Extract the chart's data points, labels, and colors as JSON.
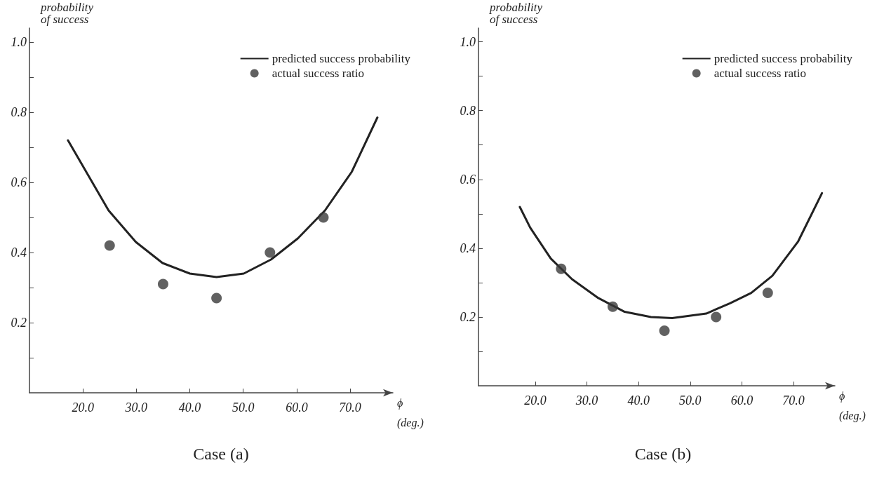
{
  "chart_data": [
    {
      "type": "line",
      "title": "Case (a)",
      "xlabel": "ϕ\n(deg.)",
      "ylabel": "probability\nof success",
      "legend": "top right",
      "grid": false,
      "xlim": [
        10,
        78
      ],
      "xticks": [
        {
          "value": 20,
          "label": "20.0"
        },
        {
          "value": 30,
          "label": "30.0"
        },
        {
          "value": 40,
          "label": "40.0"
        },
        {
          "value": 50,
          "label": "50.0"
        },
        {
          "value": 60,
          "label": "60.0"
        },
        {
          "value": 70,
          "label": "70.0"
        }
      ],
      "ylim": [
        0,
        1.04
      ],
      "yticks": [
        {
          "value": 0.1,
          "label": null
        },
        {
          "value": 0.2,
          "label": "0.2"
        },
        {
          "value": 0.3,
          "label": null
        },
        {
          "value": 0.4,
          "label": "0.4"
        },
        {
          "value": 0.5,
          "label": null
        },
        {
          "value": 0.6,
          "label": "0.6"
        },
        {
          "value": 0.7,
          "label": null
        },
        {
          "value": 0.8,
          "label": "0.8"
        },
        {
          "value": 0.9,
          "label": null
        },
        {
          "value": 1.0,
          "label": "1.0"
        }
      ],
      "series": [
        {
          "name": "predicted success probability",
          "marker": "none",
          "line_style": "solid",
          "color": "#222222",
          "x": [
            17.2,
            24.8,
            29.9,
            34.9,
            40,
            45,
            50.1,
            55.2,
            60.2,
            65.3,
            70.3,
            75.1
          ],
          "values": [
            0.72,
            0.52,
            0.43,
            0.37,
            0.34,
            0.33,
            0.34,
            0.38,
            0.44,
            0.52,
            0.63,
            0.785
          ]
        },
        {
          "name": "actual success ratio",
          "type": "scatter",
          "marker": "circle",
          "color": "#3a3a3a",
          "x": [
            25,
            35,
            45,
            55,
            65
          ],
          "values": [
            0.42,
            0.31,
            0.27,
            0.4,
            0.5
          ]
        }
      ]
    },
    {
      "type": "line",
      "title": "Case (b)",
      "xlabel": "ϕ\n(deg.)",
      "ylabel": "probability\nof success",
      "legend": "top right",
      "grid": false,
      "xlim": [
        9,
        78
      ],
      "xticks": [
        {
          "value": 20,
          "label": "20.0"
        },
        {
          "value": 30,
          "label": "30.0"
        },
        {
          "value": 40,
          "label": "40.0"
        },
        {
          "value": 50,
          "label": "50.0"
        },
        {
          "value": 60,
          "label": "60.0"
        },
        {
          "value": 70,
          "label": "70.0"
        }
      ],
      "ylim": [
        0,
        1.04
      ],
      "yticks": [
        {
          "value": 0.1,
          "label": null
        },
        {
          "value": 0.2,
          "label": "0.2"
        },
        {
          "value": 0.3,
          "label": null
        },
        {
          "value": 0.4,
          "label": "0.4"
        },
        {
          "value": 0.5,
          "label": null
        },
        {
          "value": 0.6,
          "label": "0.6"
        },
        {
          "value": 0.7,
          "label": null
        },
        {
          "value": 0.8,
          "label": "0.8"
        },
        {
          "value": 0.9,
          "label": null
        },
        {
          "value": 1.0,
          "label": "1.0"
        }
      ],
      "series": [
        {
          "name": "predicted success probability",
          "marker": "none",
          "line_style": "solid",
          "color": "#222222",
          "x": [
            17.0,
            19.0,
            23.0,
            27.1,
            32.2,
            37.3,
            42.4,
            46.5,
            53.1,
            57.7,
            61.8,
            65.9,
            70.9,
            75.5
          ],
          "values": [
            0.52,
            0.46,
            0.37,
            0.31,
            0.255,
            0.215,
            0.2,
            0.197,
            0.21,
            0.24,
            0.27,
            0.32,
            0.42,
            0.56
          ]
        },
        {
          "name": "actual success ratio",
          "type": "scatter",
          "marker": "circle",
          "color": "#3a3a3a",
          "x": [
            25,
            35,
            45,
            55,
            65
          ],
          "values": [
            0.34,
            0.23,
            0.16,
            0.2,
            0.27
          ]
        }
      ]
    }
  ]
}
